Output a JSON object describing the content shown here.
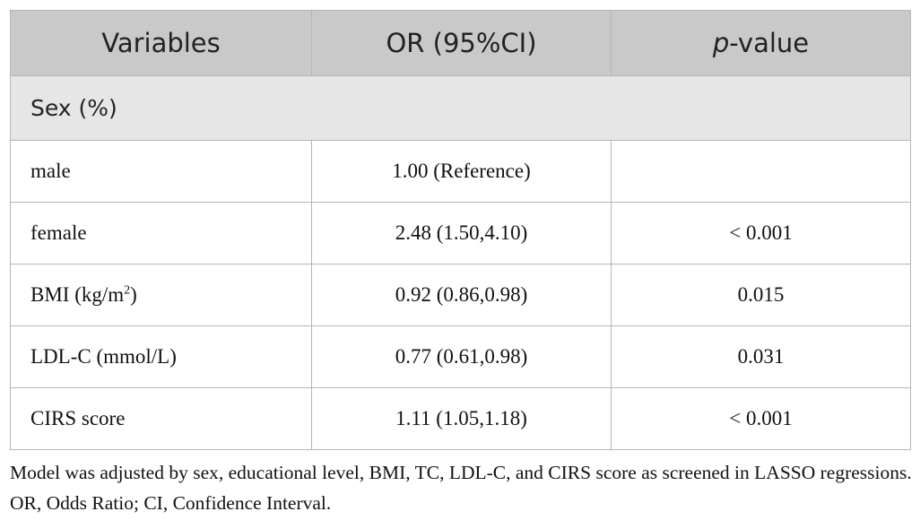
{
  "table": {
    "header": {
      "variables": "Variables",
      "or": "OR (95%CI)",
      "p_italic": "p",
      "p_rest": "-value"
    },
    "section": "Sex (%)",
    "rows": [
      {
        "variable": "male",
        "or": "1.00 (Reference)"
      },
      {
        "variable": "female",
        "or": "2.48 (1.50,4.10)",
        "p": "< 0.001"
      },
      {
        "variable": "BMI (kg/m",
        "variable_sup": "2",
        "variable_after": ")",
        "or": "0.92 (0.86,0.98)",
        "p": "0.015"
      },
      {
        "variable": "LDL-C (mmol/L)",
        "or": "0.77 (0.61,0.98)",
        "p": "0.031"
      },
      {
        "variable": "CIRS score",
        "or": "1.11 (1.05,1.18)",
        "p": "< 0.001"
      }
    ]
  },
  "footnote": "Model was adjusted by sex, educational level, BMI, TC, LDL-C, and CIRS score as screened in LASSO regressions. OR, Odds Ratio; CI, Confidence Interval."
}
